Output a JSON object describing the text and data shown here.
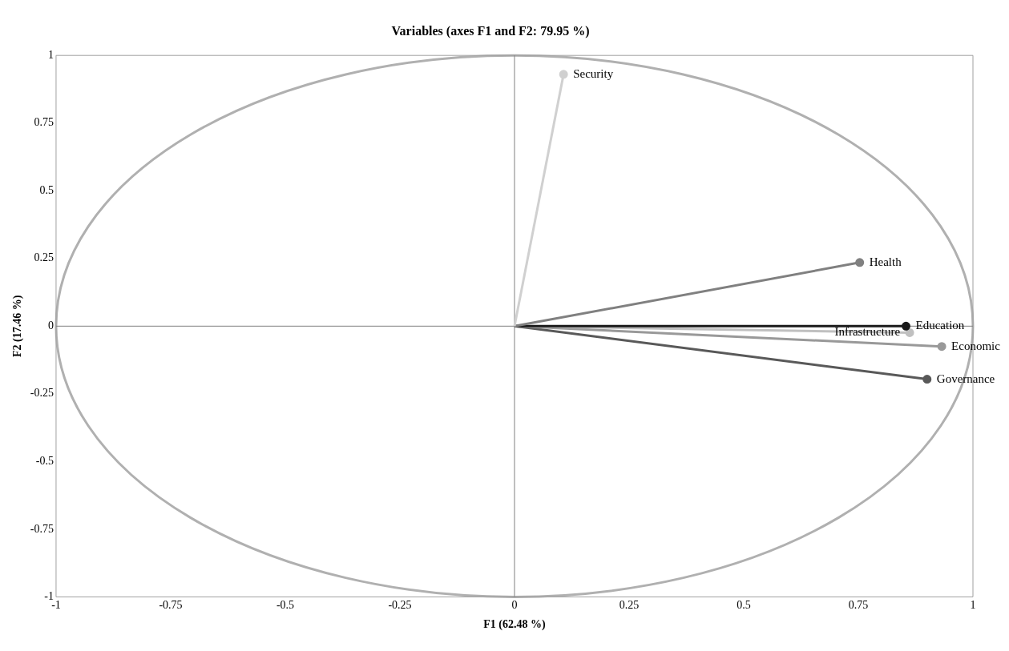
{
  "chart_data": {
    "type": "line",
    "title": "Variables (axes F1 and F2: 79.95 %)",
    "xlabel": "F1 (62.48 %)",
    "ylabel": "F2 (17.46 %)",
    "xlim": [
      -1,
      1
    ],
    "ylim": [
      -1,
      1
    ],
    "xticks": [
      -1,
      -0.75,
      -0.5,
      -0.25,
      0,
      0.25,
      0.5,
      0.75,
      1
    ],
    "yticks": [
      -1,
      -0.75,
      -0.5,
      -0.25,
      0,
      0.25,
      0.5,
      0.75,
      1
    ],
    "grid": false,
    "legend": false,
    "marker": "circle",
    "series": [
      {
        "name": "Security",
        "color": "#d0d0d0",
        "x": [
          0,
          0.107
        ],
        "values": [
          0,
          0.93
        ]
      },
      {
        "name": "Health",
        "color": "#808080",
        "x": [
          0,
          0.753
        ],
        "values": [
          0,
          0.235
        ]
      },
      {
        "name": "Education",
        "color": "#1a1a1a",
        "x": [
          0,
          0.854
        ],
        "values": [
          0,
          0
        ]
      },
      {
        "name": "Infrastructure",
        "color": "#c0c0c0",
        "x": [
          0,
          0.862
        ],
        "values": [
          0,
          -0.024
        ]
      },
      {
        "name": "Economic",
        "color": "#999999",
        "x": [
          0,
          0.932
        ],
        "values": [
          0,
          -0.075
        ]
      },
      {
        "name": "Governance",
        "color": "#595959",
        "x": [
          0,
          0.9
        ],
        "values": [
          0,
          -0.196
        ]
      }
    ]
  }
}
